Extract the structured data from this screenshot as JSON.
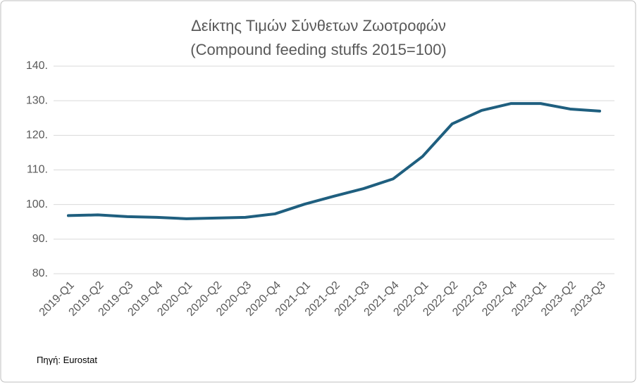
{
  "chart_data": {
    "type": "line",
    "title": "Δείκτης Τιμών Σύνθετων Ζωοτροφών",
    "subtitle": "(Compound feeding stuffs 2015=100)",
    "source": "Πηγή: Eurostat",
    "categories": [
      "2019-Q1",
      "2019-Q2",
      "2019-Q3",
      "2019-Q4",
      "2020-Q1",
      "2020-Q2",
      "2020-Q3",
      "2020-Q4",
      "2021-Q1",
      "2021-Q2",
      "2021-Q3",
      "2021-Q4",
      "2022-Q1",
      "2022-Q2",
      "2022-Q3",
      "2022-Q4",
      "2023-Q1",
      "2023-Q2",
      "2023-Q3"
    ],
    "values": [
      96.8,
      97.0,
      96.5,
      96.3,
      95.9,
      96.1,
      96.3,
      97.3,
      100.1,
      102.4,
      104.6,
      107.4,
      113.9,
      123.3,
      127.2,
      129.2,
      129.2,
      127.6,
      127.0
    ],
    "color": "#1f5f7f",
    "ylim": [
      80,
      140
    ],
    "yticks": [
      {
        "value": 80,
        "label": "80."
      },
      {
        "value": 90,
        "label": "90."
      },
      {
        "value": 100,
        "label": "100."
      },
      {
        "value": 110,
        "label": "110."
      },
      {
        "value": 120,
        "label": "120."
      },
      {
        "value": 130,
        "label": "130."
      },
      {
        "value": 140,
        "label": "140."
      }
    ],
    "grid": true
  }
}
